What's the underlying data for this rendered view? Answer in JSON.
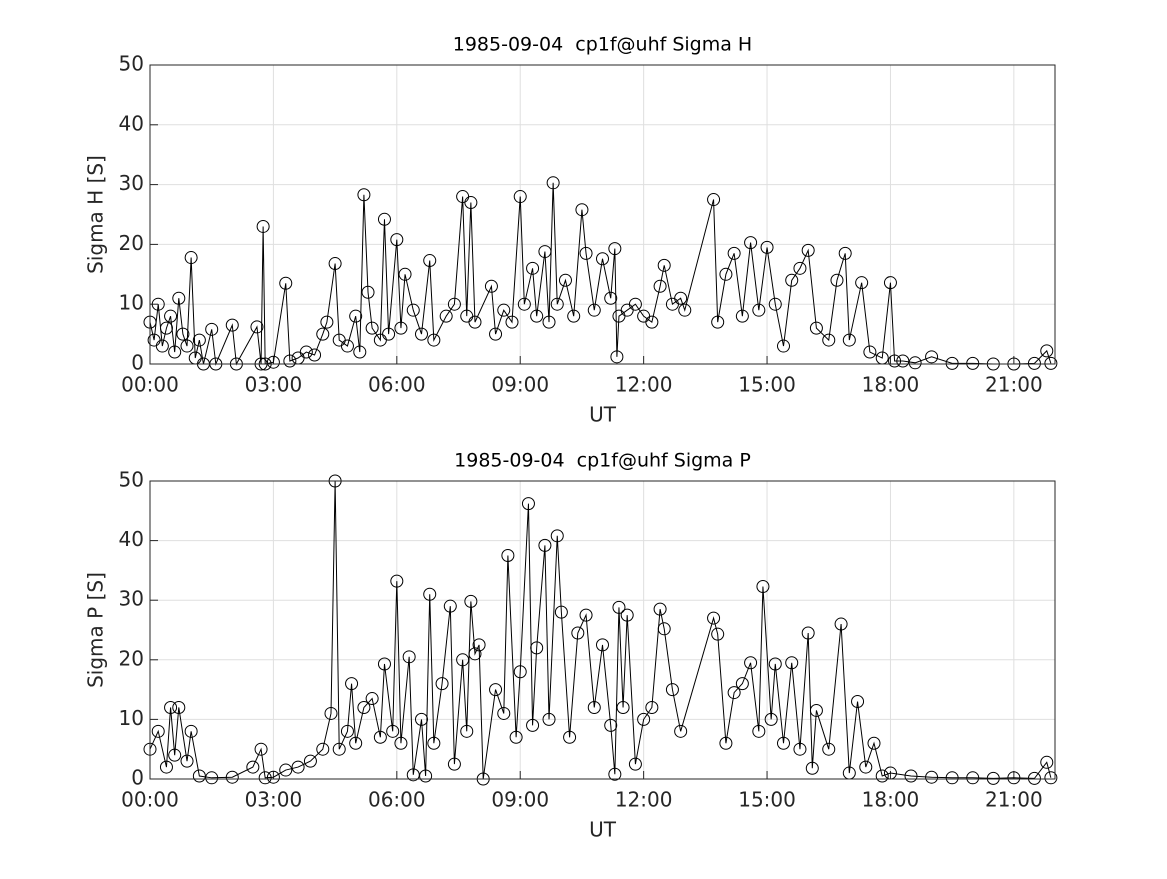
{
  "chart_data": [
    {
      "type": "line",
      "title": "1985-09-04  cp1f@uhf Sigma H",
      "xlabel": "UT",
      "ylabel": "Sigma H [S]",
      "color": "#000000",
      "marker": "circle",
      "grid": true,
      "xlim": [
        0,
        22
      ],
      "ylim": [
        0,
        50
      ],
      "xticks": [
        {
          "value": 0,
          "label": "00:00"
        },
        {
          "value": 3,
          "label": "03:00"
        },
        {
          "value": 6,
          "label": "06:00"
        },
        {
          "value": 9,
          "label": "09:00"
        },
        {
          "value": 12,
          "label": "12:00"
        },
        {
          "value": 15,
          "label": "15:00"
        },
        {
          "value": 18,
          "label": "18:00"
        },
        {
          "value": 21,
          "label": "21:00"
        }
      ],
      "yticks": [
        0,
        10,
        20,
        30,
        40,
        50
      ],
      "x": [
        0.0,
        0.1,
        0.2,
        0.3,
        0.4,
        0.5,
        0.6,
        0.7,
        0.8,
        0.9,
        1.0,
        1.1,
        1.2,
        1.3,
        1.5,
        1.6,
        2.0,
        2.1,
        2.6,
        2.7,
        2.75,
        2.8,
        3.0,
        3.3,
        3.4,
        3.6,
        3.8,
        4.0,
        4.2,
        4.3,
        4.5,
        4.6,
        4.8,
        5.0,
        5.1,
        5.2,
        5.3,
        5.4,
        5.6,
        5.7,
        5.8,
        6.0,
        6.1,
        6.2,
        6.4,
        6.6,
        6.8,
        6.9,
        7.2,
        7.4,
        7.6,
        7.7,
        7.8,
        7.9,
        8.3,
        8.4,
        8.6,
        8.8,
        9.0,
        9.1,
        9.3,
        9.4,
        9.6,
        9.7,
        9.8,
        9.9,
        10.1,
        10.3,
        10.5,
        10.6,
        10.8,
        11.0,
        11.2,
        11.3,
        11.35,
        11.4,
        11.6,
        11.8,
        12.0,
        12.2,
        12.4,
        12.5,
        12.7,
        12.9,
        13.0,
        13.7,
        13.8,
        14.0,
        14.2,
        14.4,
        14.6,
        14.8,
        15.0,
        15.2,
        15.4,
        15.6,
        15.8,
        16.0,
        16.2,
        16.5,
        16.7,
        16.9,
        17.0,
        17.3,
        17.5,
        17.8,
        18.0,
        18.1,
        18.3,
        18.6,
        19.0,
        19.5,
        20.0,
        20.5,
        21.0,
        21.5,
        21.8,
        21.9
      ],
      "values": [
        7,
        4,
        10,
        3,
        6,
        8,
        2,
        11,
        5,
        3,
        17.8,
        1,
        4,
        0,
        5.8,
        0,
        6.5,
        0,
        6.2,
        0,
        23,
        0,
        0.3,
        13.5,
        0.5,
        1,
        2,
        1.5,
        5,
        7,
        16.8,
        4,
        3,
        8,
        2,
        28.3,
        12,
        6,
        4,
        24.2,
        5,
        20.8,
        6,
        15,
        9,
        5,
        17.3,
        4,
        8,
        10,
        28,
        8,
        27,
        7,
        13,
        5,
        9,
        7,
        28,
        10,
        16,
        8,
        18.8,
        7,
        30.3,
        10,
        14,
        8,
        25.8,
        18.5,
        9,
        17.6,
        11,
        19.3,
        1.2,
        8,
        9,
        10,
        8,
        7,
        13,
        16.5,
        10,
        11,
        9,
        27.5,
        7,
        15,
        18.5,
        8,
        20.3,
        9,
        19.5,
        10,
        3,
        14,
        16,
        19,
        6,
        4,
        14,
        18.5,
        4,
        13.6,
        2,
        1,
        13.6,
        0.5,
        0.5,
        0.2,
        1.2,
        0.1,
        0.1,
        0,
        0,
        0.1,
        2.2,
        0.1
      ]
    },
    {
      "type": "line",
      "title": "1985-09-04  cp1f@uhf Sigma P",
      "xlabel": "UT",
      "ylabel": "Sigma P [S]",
      "color": "#000000",
      "marker": "circle",
      "grid": true,
      "xlim": [
        0,
        22
      ],
      "ylim": [
        0,
        50
      ],
      "xticks": [
        {
          "value": 0,
          "label": "00:00"
        },
        {
          "value": 3,
          "label": "03:00"
        },
        {
          "value": 6,
          "label": "06:00"
        },
        {
          "value": 9,
          "label": "09:00"
        },
        {
          "value": 12,
          "label": "12:00"
        },
        {
          "value": 15,
          "label": "15:00"
        },
        {
          "value": 18,
          "label": "18:00"
        },
        {
          "value": 21,
          "label": "21:00"
        }
      ],
      "yticks": [
        0,
        10,
        20,
        30,
        40,
        50
      ],
      "x": [
        0.0,
        0.2,
        0.4,
        0.5,
        0.6,
        0.7,
        0.9,
        1.0,
        1.2,
        1.5,
        2.0,
        2.5,
        2.7,
        2.8,
        3.0,
        3.3,
        3.6,
        3.9,
        4.2,
        4.4,
        4.5,
        4.6,
        4.8,
        4.9,
        5.0,
        5.2,
        5.4,
        5.6,
        5.7,
        5.9,
        6.0,
        6.1,
        6.3,
        6.4,
        6.6,
        6.7,
        6.8,
        6.9,
        7.1,
        7.3,
        7.4,
        7.6,
        7.7,
        7.8,
        7.9,
        8.0,
        8.1,
        8.4,
        8.6,
        8.7,
        8.9,
        9.0,
        9.2,
        9.3,
        9.4,
        9.6,
        9.7,
        9.9,
        10.0,
        10.2,
        10.4,
        10.6,
        10.8,
        11.0,
        11.2,
        11.3,
        11.4,
        11.5,
        11.6,
        11.8,
        12.0,
        12.2,
        12.4,
        12.5,
        12.7,
        12.9,
        13.7,
        13.8,
        14.0,
        14.2,
        14.4,
        14.6,
        14.8,
        14.9,
        15.1,
        15.2,
        15.4,
        15.6,
        15.8,
        16.0,
        16.1,
        16.2,
        16.5,
        16.8,
        17.0,
        17.2,
        17.4,
        17.6,
        17.8,
        18.0,
        18.5,
        19.0,
        19.5,
        20.0,
        20.5,
        21.0,
        21.5,
        21.8,
        21.9
      ],
      "values": [
        5,
        8,
        2,
        12,
        4,
        12,
        3,
        8,
        0.5,
        0.2,
        0.3,
        2,
        5,
        0.2,
        0.3,
        1.5,
        2,
        3,
        5,
        11,
        50,
        5,
        8,
        16,
        6,
        12,
        13.5,
        7,
        19.3,
        8,
        33.2,
        6,
        20.5,
        0.7,
        10,
        0.5,
        31,
        6,
        16,
        29,
        2.5,
        20,
        8,
        29.8,
        21,
        22.5,
        0,
        15,
        11,
        37.5,
        7,
        18,
        46.2,
        9,
        22,
        39.2,
        10,
        40.8,
        28,
        7,
        24.5,
        27.5,
        12,
        22.5,
        9,
        0.8,
        28.8,
        12,
        27.5,
        2.5,
        10,
        12,
        28.5,
        25.2,
        15,
        8,
        27,
        24.3,
        6,
        14.5,
        16,
        19.5,
        8,
        32.3,
        10,
        19.3,
        6,
        19.5,
        5,
        24.5,
        1.8,
        11.5,
        5,
        26,
        1,
        13,
        2,
        6,
        0.5,
        1,
        0.5,
        0.3,
        0.2,
        0.2,
        0.1,
        0.2,
        0.1,
        2.8,
        0.2
      ]
    }
  ]
}
